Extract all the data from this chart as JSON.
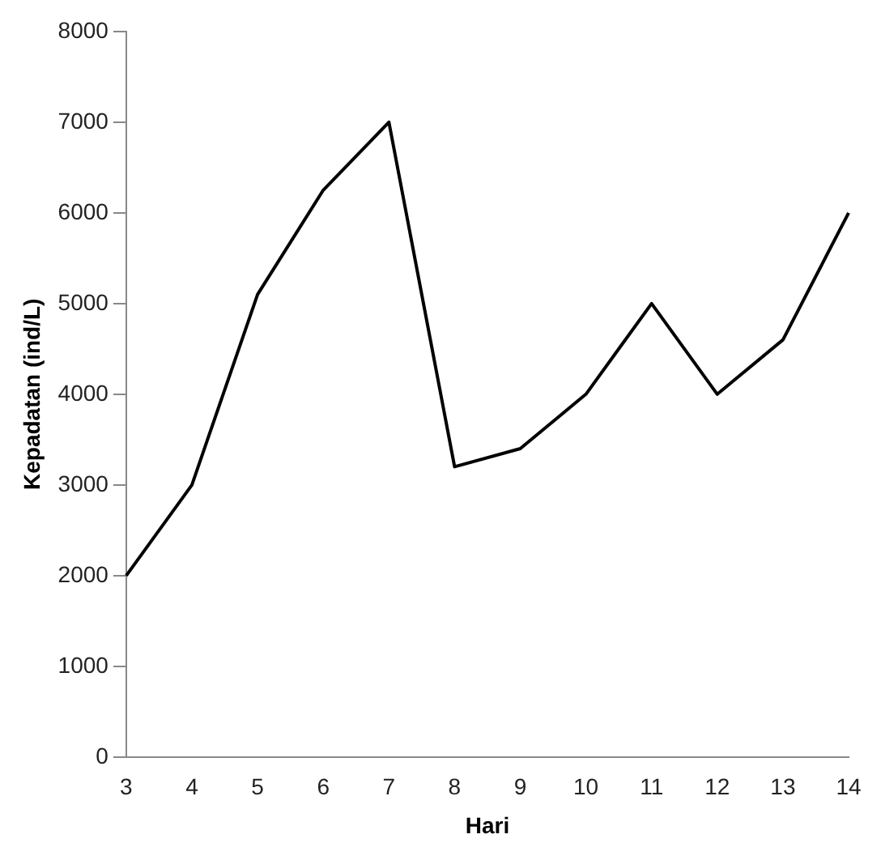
{
  "chart_data": {
    "type": "line",
    "xlabel": "Hari",
    "ylabel": "Kepadatan (ind/L)",
    "categories": [
      "3",
      "4",
      "5",
      "6",
      "7",
      "8",
      "9",
      "10",
      "11",
      "12",
      "13",
      "14"
    ],
    "series": [
      {
        "color": "#000000",
        "values": [
          2000,
          3000,
          5100,
          6250,
          7000,
          3200,
          3400,
          4000,
          5000,
          4000,
          4600,
          6000
        ]
      }
    ],
    "ylim": [
      0,
      8000
    ],
    "yticks": [
      0,
      1000,
      2000,
      3000,
      4000,
      5000,
      6000,
      7000,
      8000
    ],
    "grid": false,
    "legend": false,
    "marker": "none",
    "line_style": "solid"
  }
}
